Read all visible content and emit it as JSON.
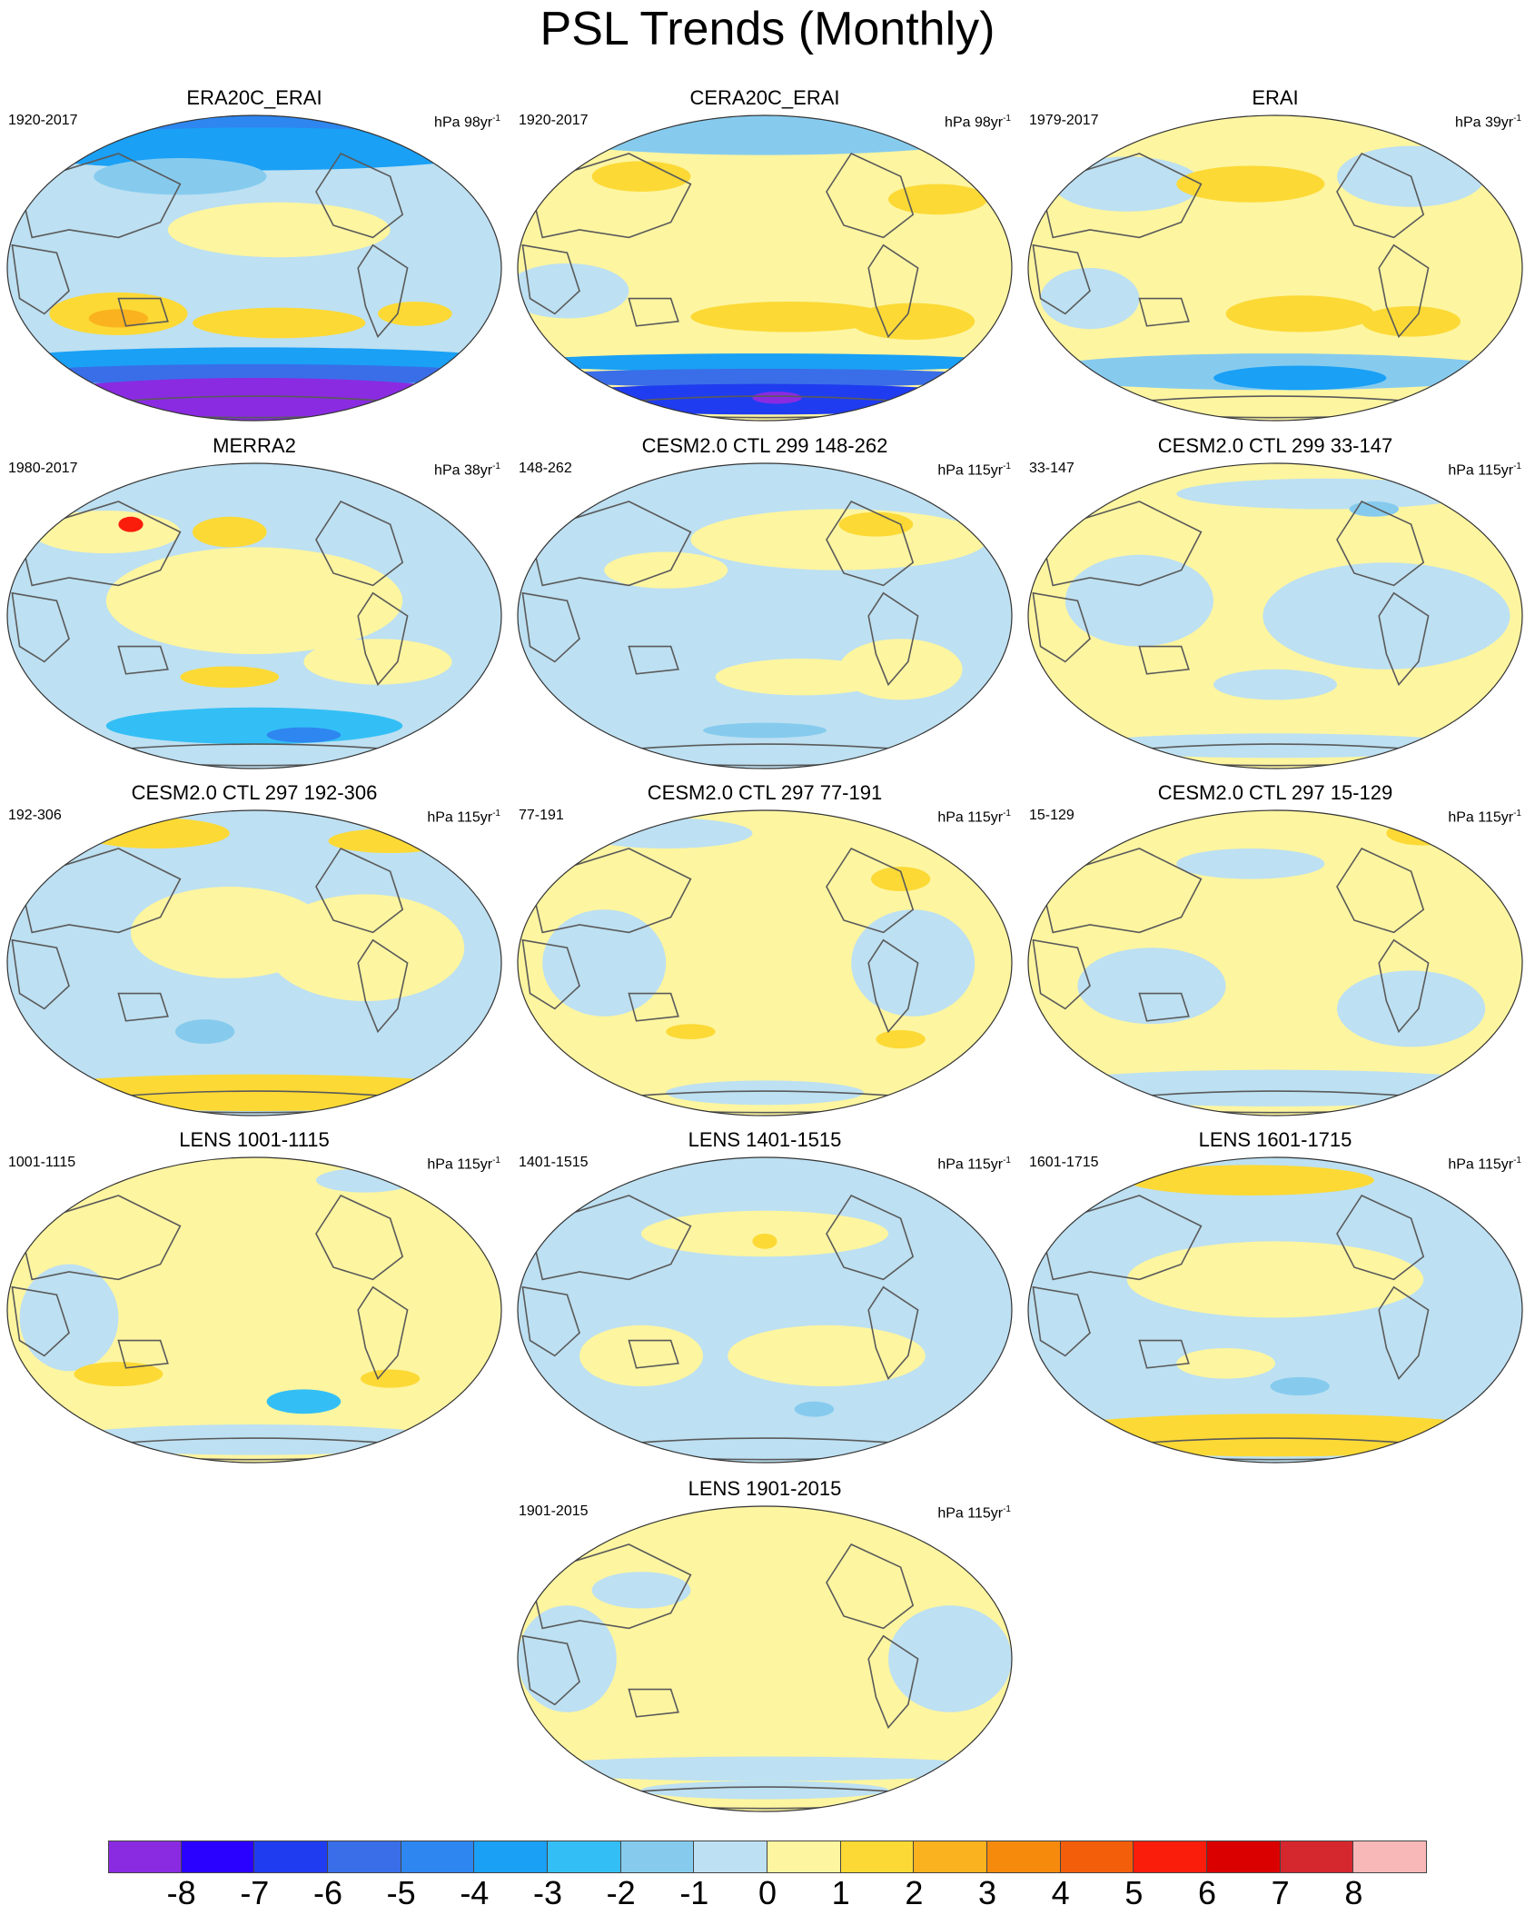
{
  "title": "PSL Trends (Monthly)",
  "units_prefix": "hPa",
  "panels": [
    {
      "title": "ERA20C_ERAI",
      "period": "1920-2017",
      "units_years": "98yr",
      "pattern": "era20c"
    },
    {
      "title": "CERA20C_ERAI",
      "period": "1920-2017",
      "units_years": "98yr",
      "pattern": "cera20c"
    },
    {
      "title": "ERAI",
      "period": "1979-2017",
      "units_years": "39yr",
      "pattern": "erai"
    },
    {
      "title": "MERRA2",
      "period": "1980-2017",
      "units_years": "38yr",
      "pattern": "merra2"
    },
    {
      "title": "CESM2.0 CTL 299 148-262",
      "period": "148-262",
      "units_years": "115yr",
      "pattern": "ctl_a"
    },
    {
      "title": "CESM2.0 CTL 299 33-147",
      "period": "33-147",
      "units_years": "115yr",
      "pattern": "ctl_b"
    },
    {
      "title": "CESM2.0 CTL 297 192-306",
      "period": "192-306",
      "units_years": "115yr",
      "pattern": "ctl_c"
    },
    {
      "title": "CESM2.0 CTL 297 77-191",
      "period": "77-191",
      "units_years": "115yr",
      "pattern": "ctl_d"
    },
    {
      "title": "CESM2.0 CTL 297 15-129",
      "period": "15-129",
      "units_years": "115yr",
      "pattern": "ctl_e"
    },
    {
      "title": "LENS 1001-1115",
      "period": "1001-1115",
      "units_years": "115yr",
      "pattern": "lens_a"
    },
    {
      "title": "LENS 1401-1515",
      "period": "1401-1515",
      "units_years": "115yr",
      "pattern": "lens_b"
    },
    {
      "title": "LENS 1601-1715",
      "period": "1601-1715",
      "units_years": "115yr",
      "pattern": "lens_c"
    },
    {
      "title": "LENS 1901-2015",
      "period": "1901-2015",
      "units_years": "115yr",
      "pattern": "lens_d"
    }
  ],
  "colorbar": {
    "labels": [
      "-8",
      "-7",
      "-6",
      "-5",
      "-4",
      "-3",
      "-2",
      "-1",
      "0",
      "1",
      "2",
      "3",
      "4",
      "5",
      "6",
      "7",
      "8"
    ],
    "colors": [
      "#8a2be2",
      "#2a00ff",
      "#1f3cf0",
      "#3a6ee8",
      "#2e86f0",
      "#1aa0f5",
      "#33bff5",
      "#86cbee",
      "#bde0f2",
      "#fdf5a0",
      "#fcd935",
      "#fab21e",
      "#f68a0d",
      "#f35e0a",
      "#fb1d0c",
      "#db0000",
      "#d5272e",
      "#f9b8b8"
    ]
  },
  "colors": {
    "land_outline": "#5a5a5a",
    "frame": "#333333"
  }
}
